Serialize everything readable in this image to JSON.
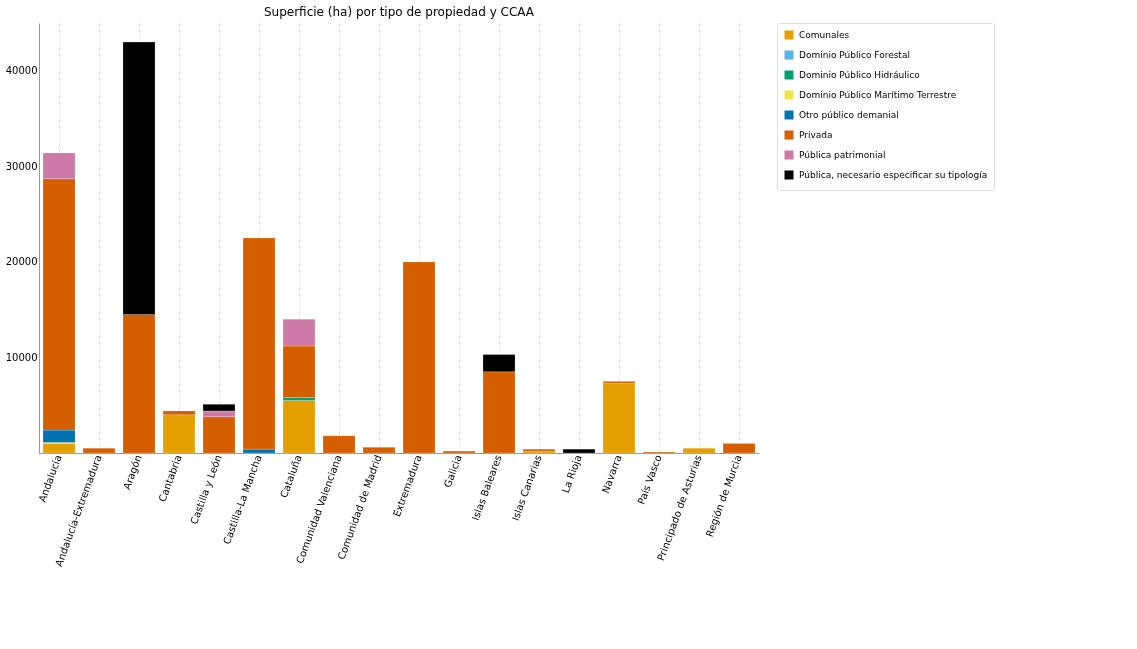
{
  "chart_data": {
    "type": "bar",
    "title": "Superficie (ha) por tipo de propiedad y CCAA",
    "stacked": true,
    "categories": [
      "Andalucía",
      "Andalucía-Extremadura",
      "Aragón",
      "Cantabria",
      "Castilla y León",
      "Castilla-La Mancha",
      "Cataluña",
      "Comunidad Valenciana",
      "Comunidad de Madrid",
      "Extremadura",
      "Galicia",
      "Islas Baleares",
      "Islas Canarias",
      "La Rioja",
      "Navarra",
      "País Vasco",
      "Principado de Asturias",
      "Región de Murcia"
    ],
    "series": [
      {
        "name": "Comunales",
        "color": "#e69f00",
        "values": [
          1000,
          null,
          null,
          4000,
          null,
          null,
          5500,
          null,
          null,
          null,
          null,
          null,
          200,
          null,
          7300,
          null,
          500,
          null
        ]
      },
      {
        "name": "Dominio Público Forestal",
        "color": "#56b4e9",
        "values": [
          null,
          null,
          null,
          null,
          null,
          null,
          null,
          null,
          null,
          null,
          null,
          null,
          null,
          null,
          null,
          null,
          null,
          null
        ]
      },
      {
        "name": "Dominio Público Hidráulico",
        "color": "#009e73",
        "values": [
          null,
          null,
          null,
          null,
          null,
          null,
          300,
          null,
          null,
          null,
          null,
          null,
          null,
          null,
          null,
          null,
          null,
          null
        ]
      },
      {
        "name": "Dominio Público Marítimo Terrestre",
        "color": "#f0e442",
        "values": [
          100,
          null,
          null,
          null,
          null,
          null,
          null,
          null,
          null,
          null,
          null,
          null,
          null,
          null,
          null,
          null,
          null,
          null
        ]
      },
      {
        "name": "Otro público demanial",
        "color": "#0072b2",
        "values": [
          1300,
          null,
          null,
          null,
          null,
          400,
          null,
          null,
          null,
          null,
          null,
          null,
          null,
          null,
          null,
          null,
          null,
          null
        ]
      },
      {
        "name": "Privada",
        "color": "#d55e00",
        "values": [
          26300,
          500,
          14500,
          400,
          3800,
          22100,
          5400,
          1800,
          600,
          20000,
          200,
          8500,
          200,
          null,
          200,
          100,
          null,
          1000
        ]
      },
      {
        "name": "Pública patrimonial",
        "color": "#cc79a7",
        "values": [
          2700,
          null,
          null,
          null,
          600,
          null,
          2800,
          null,
          null,
          null,
          null,
          null,
          null,
          null,
          null,
          null,
          null,
          null
        ]
      },
      {
        "name": "Pública, necesario especificar su tipología",
        "color": "#000000",
        "values": [
          null,
          null,
          28500,
          null,
          700,
          null,
          null,
          null,
          null,
          null,
          null,
          1800,
          null,
          400,
          null,
          null,
          null,
          null
        ]
      }
    ],
    "ylim": [
      0,
      45000
    ],
    "yticks": [
      10000,
      20000,
      30000,
      40000
    ],
    "grid": "x",
    "legend": "top right"
  }
}
